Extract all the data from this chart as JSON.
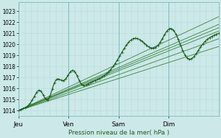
{
  "background_color": "#cce8e8",
  "grid_color": "#b8dada",
  "line_color_dark": "#1a5c1a",
  "line_color_light": "#2d7a2d",
  "ylim": [
    1013.5,
    1023.8
  ],
  "xlim": [
    0,
    96
  ],
  "yticks": [
    1014,
    1015,
    1016,
    1017,
    1018,
    1019,
    1020,
    1021,
    1022,
    1023
  ],
  "xtick_positions": [
    0,
    24,
    48,
    72
  ],
  "xtick_labels": [
    "Jeu",
    "Ven",
    "Sam",
    "Dim"
  ],
  "xlabel": "Pression niveau de la mer( hPa )",
  "figsize": [
    3.2,
    2.0
  ],
  "dpi": 100
}
